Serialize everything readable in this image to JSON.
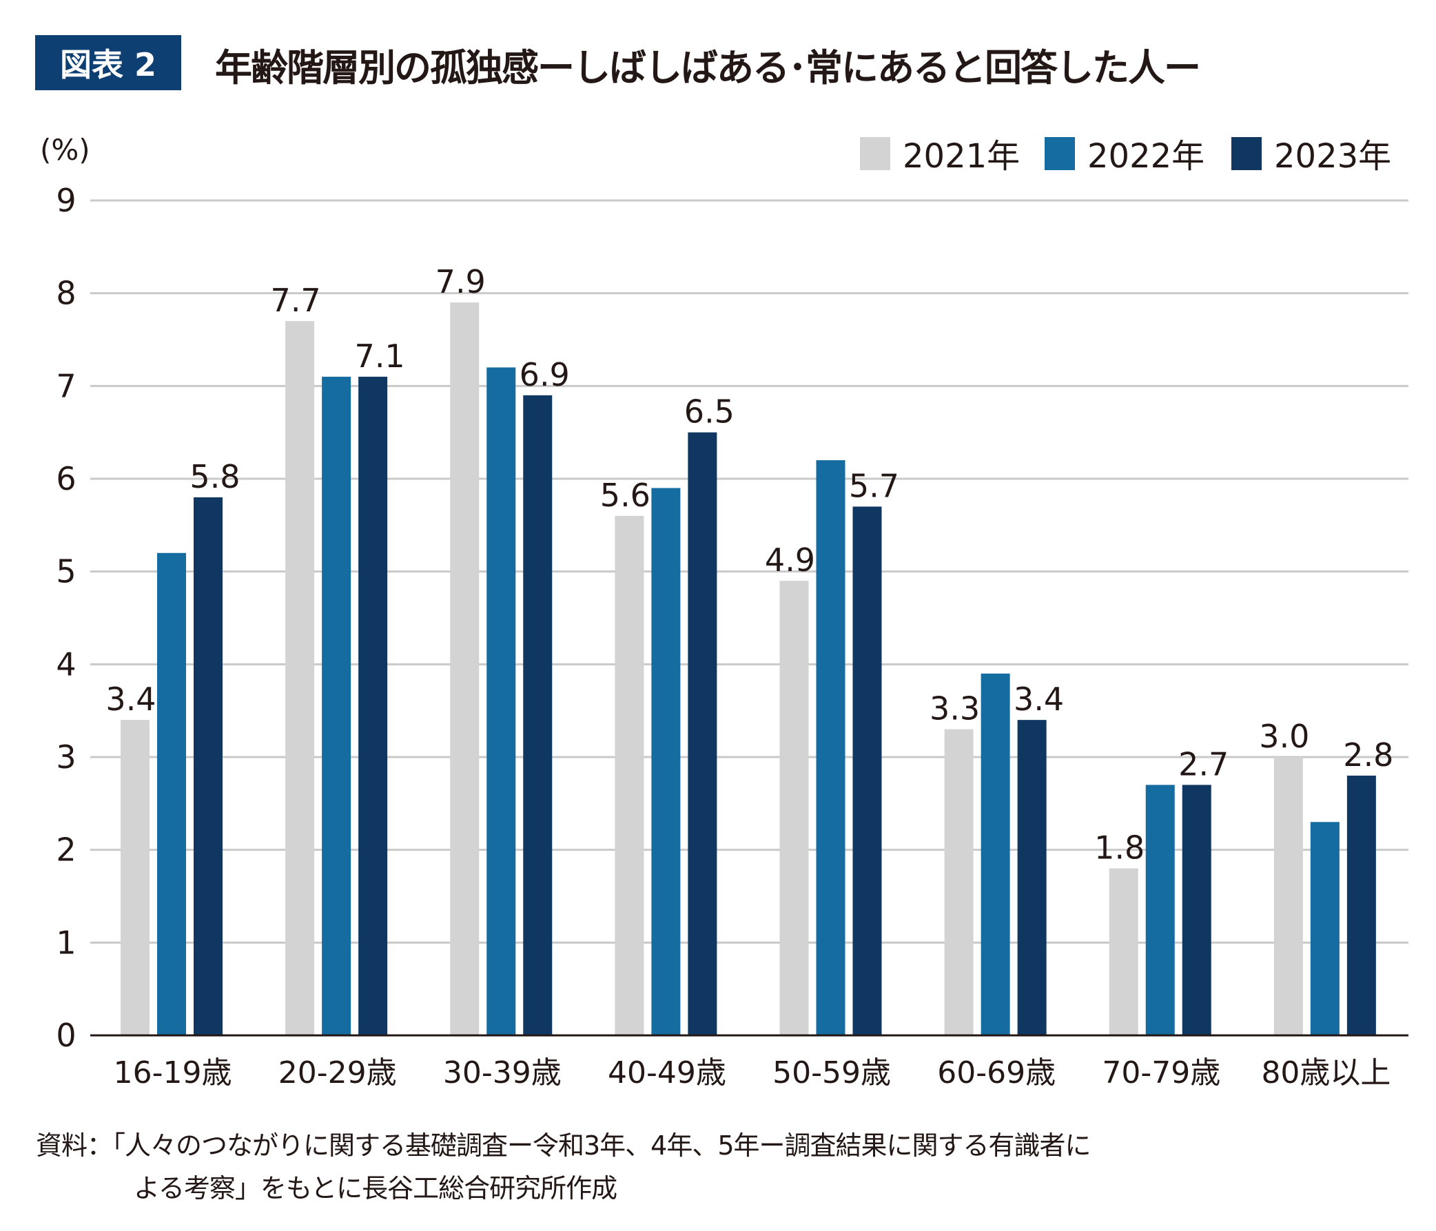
{
  "header": {
    "badge": "図表 2",
    "title": "年齢階層別の孤独感ーしばしばある･常にあると回答した人ー"
  },
  "source": {
    "line1": "資料：「人々のつながりに関する基礎調査ー令和3年、4年、5年ー調査結果に関する有識者に",
    "line2": "よる考察」をもとに長谷工総合研究所作成"
  },
  "chart_data": {
    "type": "bar",
    "title": "年齢階層別の孤独感ーしばしばある･常にあると回答した人ー",
    "ylabel": "(%)",
    "xlabel": "",
    "ylim": [
      0,
      9
    ],
    "yticks": [
      "0",
      "1",
      "2",
      "3",
      "4",
      "5",
      "6",
      "7",
      "8",
      "9"
    ],
    "grid": true,
    "legend_position": "top-right",
    "categories": [
      "16-19歳",
      "20-29歳",
      "30-39歳",
      "40-49歳",
      "50-59歳",
      "60-69歳",
      "70-79歳",
      "80歳以上"
    ],
    "series": [
      {
        "name": "2021年",
        "color": "#d3d3d3",
        "values": [
          3.4,
          7.7,
          7.9,
          5.6,
          4.9,
          3.3,
          1.8,
          3.0
        ],
        "labels": [
          "3.4",
          "7.7",
          "7.9",
          "5.6",
          "4.9",
          "3.3",
          "1.8",
          "3.0"
        ]
      },
      {
        "name": "2022年",
        "color": "#156ca0",
        "values": [
          5.2,
          7.1,
          7.2,
          5.9,
          6.2,
          3.9,
          2.7,
          2.3
        ],
        "labels": [
          null,
          null,
          null,
          null,
          null,
          null,
          null,
          null
        ]
      },
      {
        "name": "2023年",
        "color": "#0f3761",
        "values": [
          5.8,
          7.1,
          6.9,
          6.5,
          5.7,
          3.4,
          2.7,
          2.8
        ],
        "labels": [
          "5.8",
          "7.1",
          "6.9",
          "6.5",
          "5.7",
          "3.4",
          "2.7",
          "2.8"
        ]
      }
    ]
  }
}
